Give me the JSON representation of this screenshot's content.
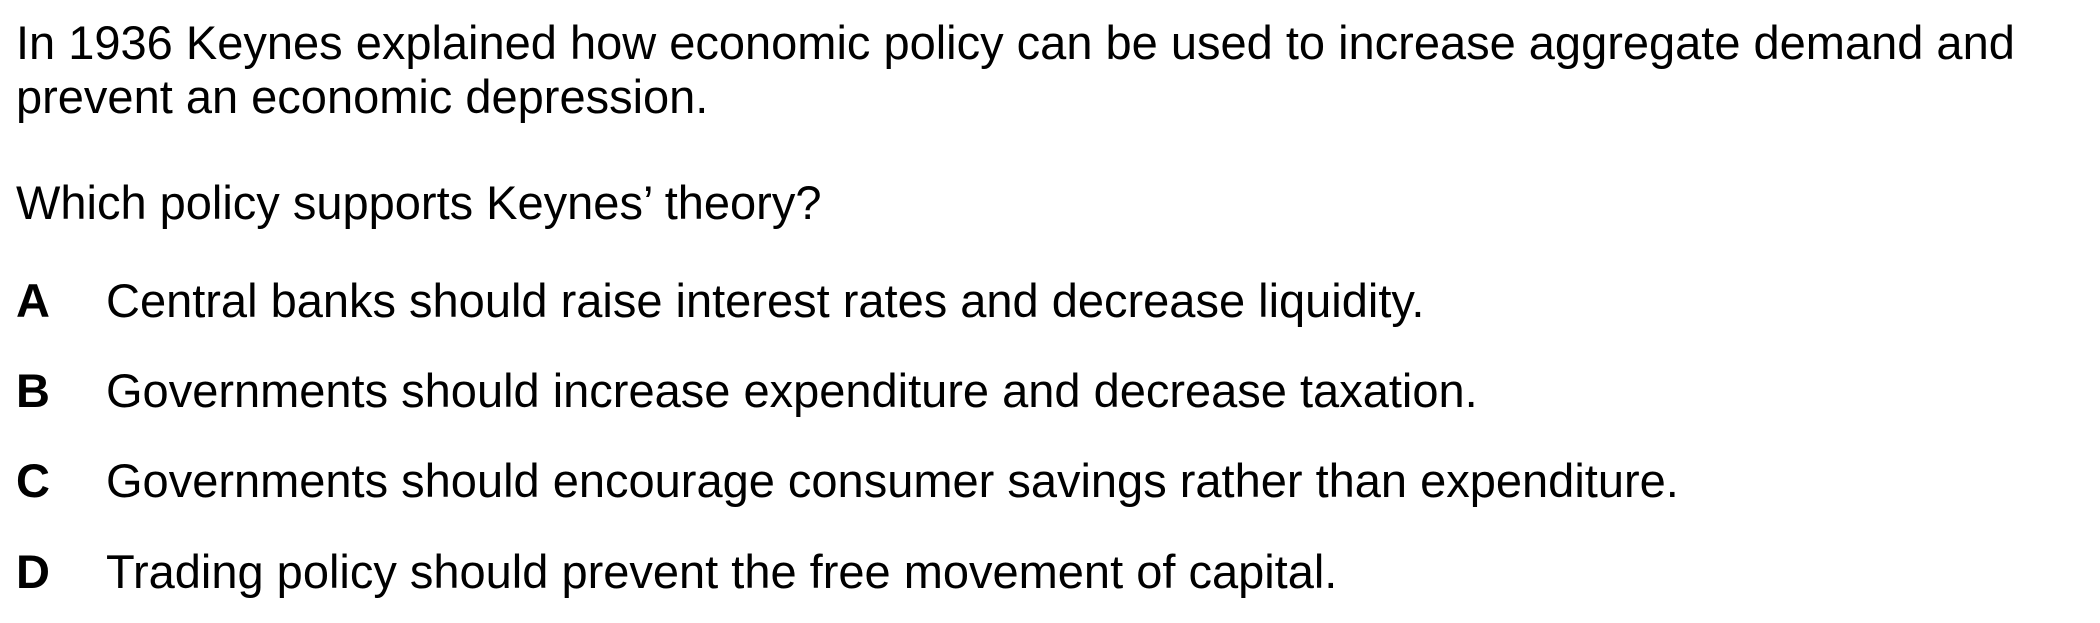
{
  "question": {
    "stem": "In 1936 Keynes explained how economic policy can be used to increase aggregate demand and prevent an economic depression.",
    "prompt": "Which policy supports Keynes’ theory?",
    "options": [
      {
        "letter": "A",
        "text": "Central banks should raise interest rates and decrease liquidity."
      },
      {
        "letter": "B",
        "text": "Governments should increase expenditure and decrease taxation."
      },
      {
        "letter": "C",
        "text": "Governments should encourage consumer savings rather than expenditure."
      },
      {
        "letter": "D",
        "text": "Trading policy should prevent the free movement of capital."
      }
    ]
  }
}
